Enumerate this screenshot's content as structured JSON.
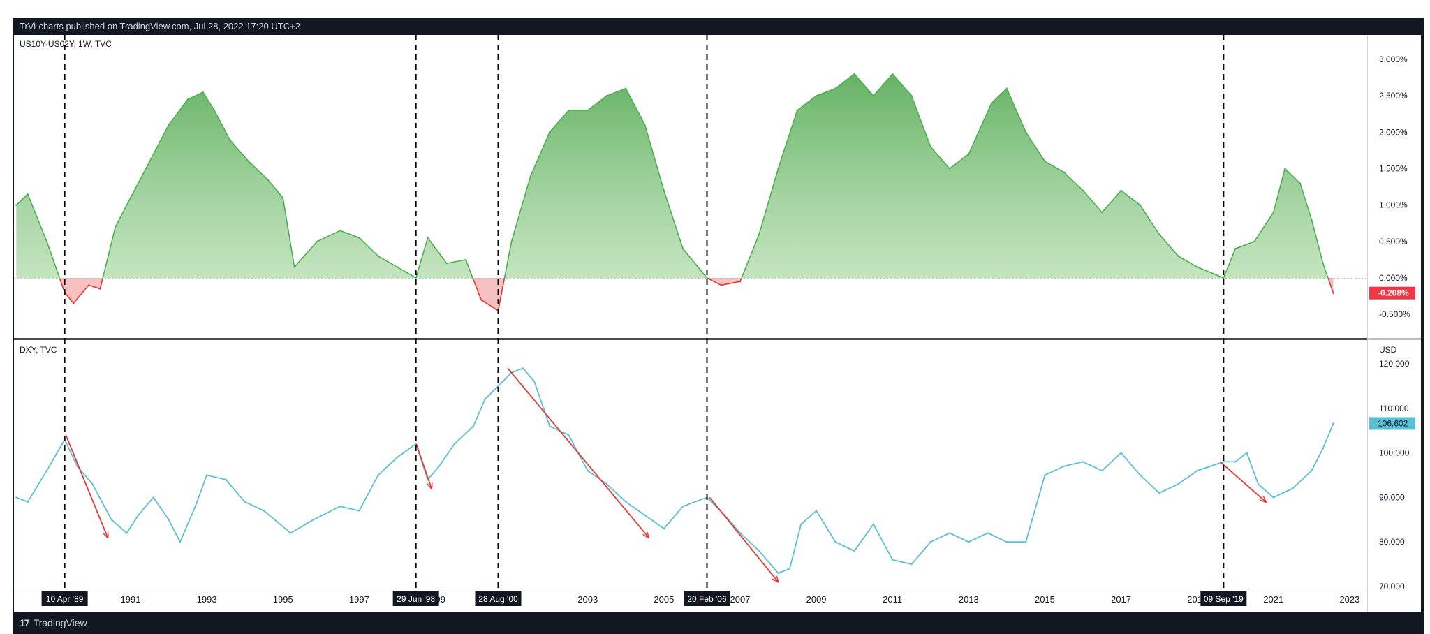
{
  "header": {
    "text": "TrVi-charts published on TradingView.com, Jul 28, 2022 17:20 UTC+2"
  },
  "footer": {
    "logo": "17",
    "brand": "TradingView"
  },
  "panes": {
    "top": {
      "label": "US10Y-US02Y, 1W, TVC",
      "y_ticks": [
        "3.000%",
        "2.500%",
        "2.000%",
        "1.500%",
        "1.000%",
        "0.500%",
        "0.000%",
        "-0.500%"
      ],
      "last_value": "-0.208%",
      "colors": {
        "positive": "#4caf50",
        "negative": "#e53935",
        "last_badge": "#f23645"
      }
    },
    "bottom": {
      "label": "DXY, TVC",
      "currency": "USD",
      "y_ticks": [
        "120.000",
        "110.000",
        "100.000",
        "90.000",
        "80.000",
        "70.000"
      ],
      "last_value": "106.602",
      "colors": {
        "line": "#5bc0d4",
        "badge": "#5bc0d4",
        "arrow": "#e53935"
      }
    }
  },
  "x_axis": {
    "ticks": [
      "1991",
      "1993",
      "1995",
      "1997",
      "1999",
      "2003",
      "2005",
      "2007",
      "2009",
      "2011",
      "2013",
      "2015",
      "2017",
      "2019",
      "2021",
      "2023"
    ],
    "markers": [
      "10 Apr '89",
      "29 Jun '98",
      "28 Aug '00",
      "20 Feb '06",
      "09 Sep '19"
    ]
  },
  "chart_data": [
    {
      "type": "area",
      "title": "US10Y-US02Y, 1W, TVC",
      "ylabel": "",
      "ylim": [
        -0.7,
        3.2
      ],
      "x": [
        1988.0,
        1988.3,
        1988.8,
        1989.27,
        1989.5,
        1989.9,
        1990.2,
        1990.6,
        1991.0,
        1991.5,
        1992.0,
        1992.5,
        1992.9,
        1993.2,
        1993.6,
        1994.1,
        1994.6,
        1995.0,
        1995.3,
        1995.9,
        1996.5,
        1997.0,
        1997.5,
        1998.0,
        1998.49,
        1998.8,
        1999.3,
        1999.8,
        2000.2,
        2000.65,
        2001.0,
        2001.5,
        2002.0,
        2002.5,
        2003.0,
        2003.5,
        2004.0,
        2004.5,
        2005.0,
        2005.5,
        2006.13,
        2006.5,
        2007.0,
        2007.5,
        2008.0,
        2008.5,
        2009.0,
        2009.5,
        2010.0,
        2010.5,
        2011.0,
        2011.5,
        2012.0,
        2012.5,
        2013.0,
        2013.6,
        2014.0,
        2014.5,
        2015.0,
        2015.5,
        2016.0,
        2016.5,
        2017.0,
        2017.5,
        2018.0,
        2018.5,
        2019.0,
        2019.69,
        2020.0,
        2020.5,
        2021.0,
        2021.3,
        2021.7,
        2022.0,
        2022.3,
        2022.57
      ],
      "y": [
        1.0,
        1.15,
        0.5,
        -0.2,
        -0.35,
        -0.1,
        -0.15,
        0.7,
        1.1,
        1.6,
        2.1,
        2.45,
        2.55,
        2.3,
        1.9,
        1.6,
        1.35,
        1.1,
        0.15,
        0.5,
        0.65,
        0.55,
        0.3,
        0.15,
        0.0,
        0.55,
        0.2,
        0.25,
        -0.3,
        -0.45,
        0.5,
        1.4,
        2.0,
        2.3,
        2.3,
        2.5,
        2.6,
        2.1,
        1.2,
        0.4,
        0.0,
        -0.1,
        -0.05,
        0.6,
        1.5,
        2.3,
        2.5,
        2.6,
        2.8,
        2.5,
        2.8,
        2.5,
        1.8,
        1.5,
        1.7,
        2.4,
        2.6,
        2.0,
        1.6,
        1.45,
        1.2,
        0.9,
        1.2,
        1.0,
        0.6,
        0.3,
        0.15,
        0.0,
        0.4,
        0.5,
        0.9,
        1.5,
        1.3,
        0.8,
        0.2,
        -0.208
      ]
    },
    {
      "type": "line",
      "title": "DXY, TVC",
      "ylabel": "USD",
      "ylim": [
        67,
        122
      ],
      "x": [
        1988.0,
        1988.3,
        1988.8,
        1989.27,
        1989.6,
        1990.0,
        1990.5,
        1990.9,
        1991.2,
        1991.6,
        1992.0,
        1992.3,
        1992.7,
        1993.0,
        1993.5,
        1994.0,
        1994.5,
        1995.2,
        1995.8,
        1996.5,
        1997.0,
        1997.5,
        1998.0,
        1998.49,
        1998.8,
        1999.1,
        1999.5,
        2000.0,
        2000.3,
        2000.65,
        2001.0,
        2001.3,
        2001.6,
        2002.0,
        2002.5,
        2003.0,
        2003.5,
        2004.0,
        2004.5,
        2005.0,
        2005.5,
        2006.13,
        2006.6,
        2007.0,
        2007.5,
        2008.0,
        2008.3,
        2008.6,
        2009.0,
        2009.5,
        2010.0,
        2010.5,
        2011.0,
        2011.5,
        2012.0,
        2012.5,
        2013.0,
        2013.5,
        2014.0,
        2014.5,
        2015.0,
        2015.5,
        2016.0,
        2016.5,
        2017.0,
        2017.5,
        2018.0,
        2018.5,
        2019.0,
        2019.69,
        2020.0,
        2020.3,
        2020.6,
        2021.0,
        2021.5,
        2022.0,
        2022.3,
        2022.57
      ],
      "y": [
        90,
        89,
        96,
        103,
        97,
        93,
        85,
        82,
        86,
        90,
        85,
        80,
        88,
        95,
        94,
        89,
        87,
        82,
        85,
        88,
        87,
        95,
        99,
        102,
        94,
        97,
        102,
        106,
        112,
        115,
        118,
        119,
        116,
        106,
        104,
        96,
        93,
        89,
        86,
        83,
        88,
        90,
        86,
        82,
        78,
        73,
        74,
        84,
        87,
        80,
        78,
        84,
        76,
        75,
        80,
        82,
        80,
        82,
        80,
        80,
        95,
        97,
        98,
        96,
        100,
        95,
        91,
        93,
        96,
        98,
        98,
        100,
        93,
        90,
        92,
        96,
        101,
        106.602
      ]
    }
  ],
  "annotations": {
    "arrows": [
      {
        "from": [
          1989.3,
          104
        ],
        "to": [
          1990.4,
          81
        ]
      },
      {
        "from": [
          1998.5,
          102
        ],
        "to": [
          1998.9,
          92
        ]
      },
      {
        "from": [
          2000.9,
          119
        ],
        "to": [
          2004.6,
          81
        ]
      },
      {
        "from": [
          2006.2,
          90
        ],
        "to": [
          2008.0,
          71
        ]
      },
      {
        "from": [
          2019.6,
          98
        ],
        "to": [
          2020.8,
          89
        ]
      }
    ],
    "marker_years": [
      1989.27,
      1998.49,
      2000.65,
      2006.13,
      2019.69
    ]
  }
}
